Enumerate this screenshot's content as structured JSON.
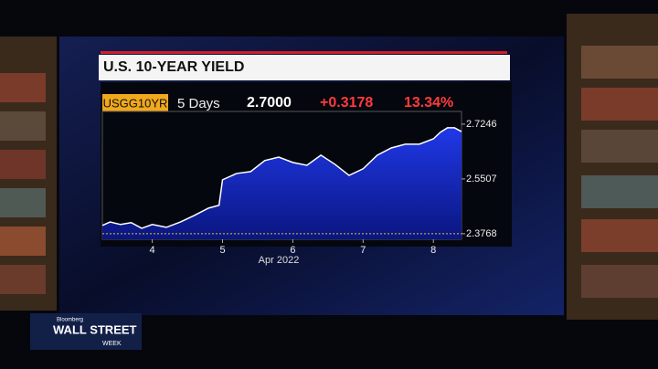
{
  "chart_data": {
    "type": "line",
    "title": "U.S. 10-YEAR YIELD",
    "ticker": "USGG10YR",
    "period": "5 Days",
    "last": "2.7000",
    "change": "+0.3178",
    "change_pct": "13.34%",
    "xlabel": "Apr 2022",
    "x": [
      3.29,
      3.4,
      3.55,
      3.7,
      3.85,
      4.0,
      4.2,
      4.4,
      4.6,
      4.8,
      4.95,
      5.0,
      5.2,
      5.4,
      5.6,
      5.8,
      6.0,
      6.2,
      6.4,
      6.6,
      6.8,
      7.0,
      7.2,
      7.4,
      7.6,
      7.8,
      8.0,
      8.1,
      8.2,
      8.3,
      8.4
    ],
    "series": [
      {
        "name": "USGG10YR",
        "color": "#ffffff",
        "values": [
          2.403,
          2.414,
          2.406,
          2.412,
          2.394,
          2.406,
          2.397,
          2.414,
          2.435,
          2.458,
          2.467,
          2.548,
          2.568,
          2.574,
          2.609,
          2.62,
          2.603,
          2.594,
          2.626,
          2.597,
          2.562,
          2.583,
          2.626,
          2.649,
          2.661,
          2.661,
          2.678,
          2.699,
          2.713,
          2.713,
          2.701
        ]
      }
    ],
    "xlim": [
      3.29,
      8.4
    ],
    "xticks": [
      4,
      5,
      6,
      7,
      8
    ],
    "ylim": [
      2.359,
      2.765
    ],
    "yticks": [
      2.3768,
      2.5507,
      2.7246
    ],
    "area_color": "#1a2fd6"
  },
  "broadcast": {
    "brand": "Bloomberg",
    "show": "WALL STREET",
    "show_sub": "WEEK"
  }
}
